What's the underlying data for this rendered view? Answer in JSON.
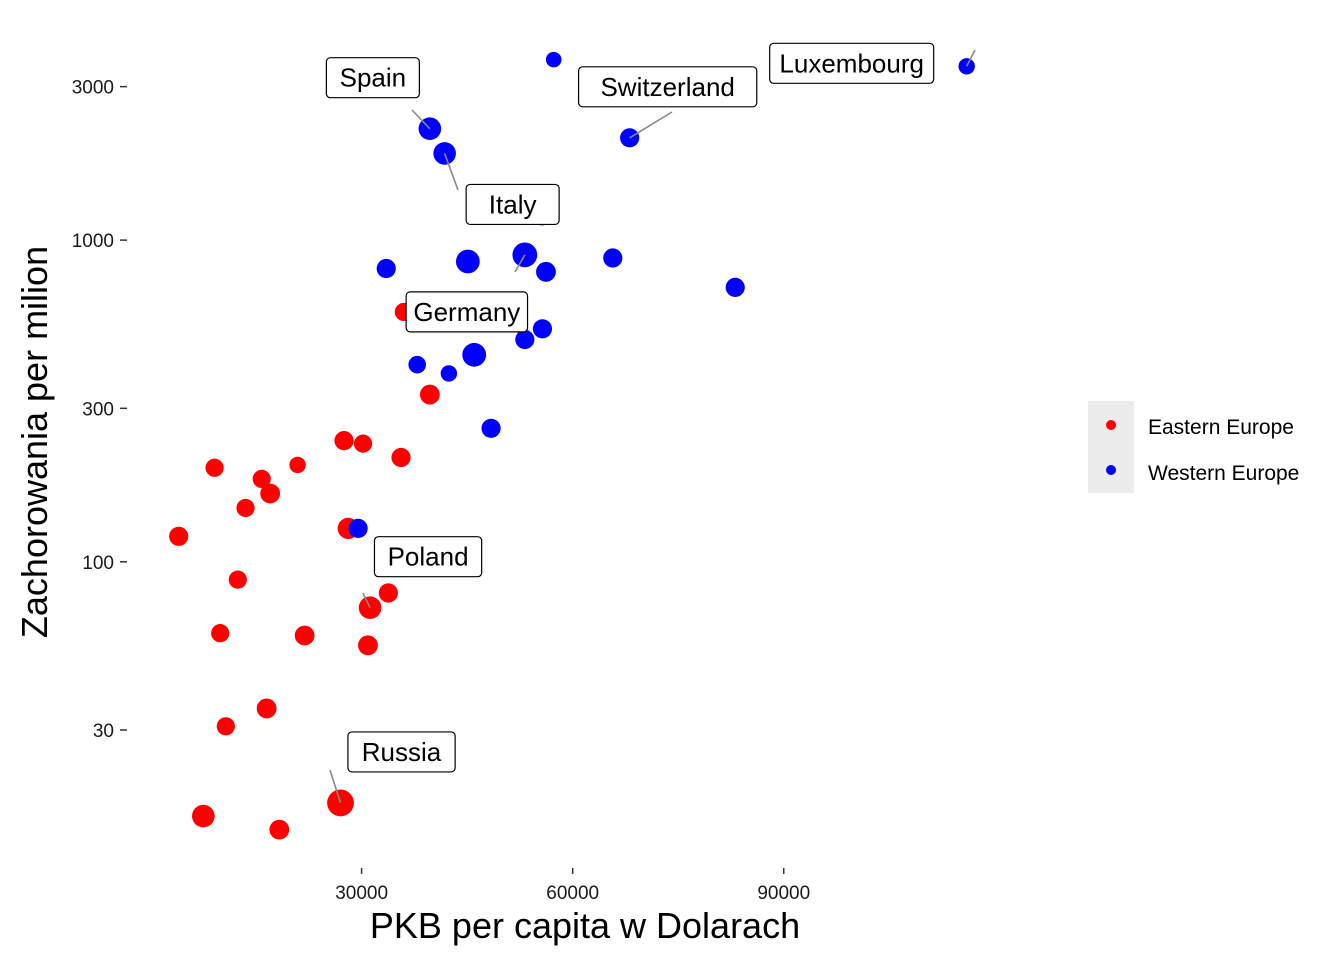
{
  "chart_data": {
    "type": "scatter",
    "xlabel": "PKB per capita w Dolarach",
    "ylabel": "Zachorowania per milion",
    "xlim": [
      -1500,
      125000
    ],
    "ylim": [
      12,
      4500
    ],
    "y_scale": "log",
    "x_ticks": [
      30000,
      60000,
      90000
    ],
    "x_tick_labels": [
      "30000",
      "60000",
      "90000"
    ],
    "y_ticks": [
      30,
      100,
      300,
      1000,
      3000
    ],
    "y_tick_labels": [
      "30",
      "100",
      "300",
      "1000",
      "3000"
    ],
    "grid": false,
    "legend_position": "right",
    "colors": {
      "Eastern Europe": "#ff0000",
      "Western Europe": "#0000ff"
    },
    "series": [
      {
        "name": "Eastern Europe",
        "color": "#ff0000",
        "points": [
          {
            "x": 27000,
            "y": 17.8,
            "size": 5
          },
          {
            "x": 7500,
            "y": 16.2,
            "size": 3
          },
          {
            "x": 18300,
            "y": 14.7,
            "size": 2
          },
          {
            "x": 16500,
            "y": 35,
            "size": 2
          },
          {
            "x": 10700,
            "y": 30.8,
            "size": 1.5
          },
          {
            "x": 30900,
            "y": 55,
            "size": 2
          },
          {
            "x": 21900,
            "y": 59,
            "size": 2
          },
          {
            "x": 9900,
            "y": 60,
            "size": 1.5
          },
          {
            "x": 31200,
            "y": 72,
            "size": 3
          },
          {
            "x": 33800,
            "y": 80,
            "size": 1.8
          },
          {
            "x": 12400,
            "y": 88,
            "size": 1.5
          },
          {
            "x": 4000,
            "y": 120,
            "size": 1.8
          },
          {
            "x": 28100,
            "y": 127,
            "size": 2.5
          },
          {
            "x": 13500,
            "y": 147,
            "size": 1.5
          },
          {
            "x": 17000,
            "y": 163,
            "size": 2
          },
          {
            "x": 15800,
            "y": 181,
            "size": 1.5
          },
          {
            "x": 9100,
            "y": 196,
            "size": 1.5
          },
          {
            "x": 20900,
            "y": 200,
            "size": 1
          },
          {
            "x": 35600,
            "y": 211,
            "size": 1.8
          },
          {
            "x": 27500,
            "y": 238,
            "size": 1.8
          },
          {
            "x": 30200,
            "y": 233,
            "size": 1.5
          },
          {
            "x": 39700,
            "y": 331,
            "size": 2
          },
          {
            "x": 36000,
            "y": 598,
            "size": 1.5
          }
        ]
      },
      {
        "name": "Western Europe",
        "color": "#0000ff",
        "points": [
          {
            "x": 29500,
            "y": 127,
            "size": 1.8
          },
          {
            "x": 48400,
            "y": 260,
            "size": 1.8
          },
          {
            "x": 37900,
            "y": 410,
            "size": 1.3
          },
          {
            "x": 42400,
            "y": 385,
            "size": 1
          },
          {
            "x": 46000,
            "y": 440,
            "size": 3.5
          },
          {
            "x": 53200,
            "y": 491,
            "size": 1.8
          },
          {
            "x": 55700,
            "y": 530,
            "size": 1.8
          },
          {
            "x": 33500,
            "y": 816,
            "size": 1.8
          },
          {
            "x": 45100,
            "y": 858,
            "size": 3.5
          },
          {
            "x": 53200,
            "y": 900,
            "size": 4
          },
          {
            "x": 56200,
            "y": 797,
            "size": 2
          },
          {
            "x": 65700,
            "y": 880,
            "size": 1.8
          },
          {
            "x": 83100,
            "y": 713,
            "size": 1.8
          },
          {
            "x": 55600,
            "y": 1190,
            "size": 1.8
          },
          {
            "x": 39700,
            "y": 2220,
            "size": 3
          },
          {
            "x": 41800,
            "y": 1860,
            "size": 3
          },
          {
            "x": 68100,
            "y": 2080,
            "size": 1.8
          },
          {
            "x": 57300,
            "y": 3640,
            "size": 0.8
          },
          {
            "x": 116000,
            "y": 3470,
            "size": 1
          }
        ]
      }
    ],
    "labels": [
      {
        "text": "Spain",
        "x": 39700,
        "y": 2220
      },
      {
        "text": "Italy",
        "x": 41800,
        "y": 1860
      },
      {
        "text": "Switzerland",
        "x": 68100,
        "y": 2080
      },
      {
        "text": "Luxembourg",
        "x": 116000,
        "y": 3470
      },
      {
        "text": "Germany",
        "x": 53200,
        "y": 900
      },
      {
        "text": "Poland",
        "x": 31200,
        "y": 72
      },
      {
        "text": "Russia",
        "x": 27000,
        "y": 17.8
      }
    ]
  }
}
